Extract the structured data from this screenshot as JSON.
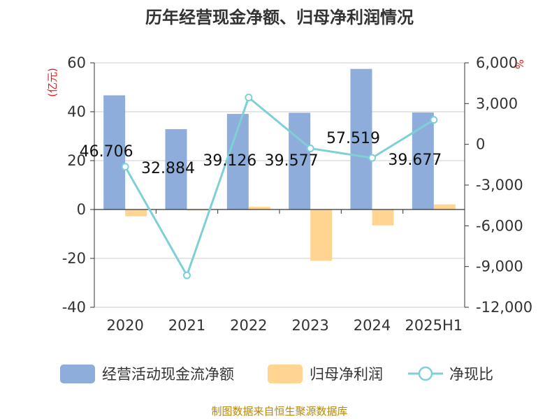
{
  "chart_data": {
    "type": "bar",
    "title": "历年经营现金净额、归母净利润情况",
    "categories": [
      "2020",
      "2021",
      "2022",
      "2023",
      "2024",
      "2025H1"
    ],
    "left_axis": {
      "unit": "(亿元)",
      "ylim": [
        -40,
        60
      ],
      "ticks": [
        "60",
        "40",
        "20",
        "0",
        "-20",
        "-40"
      ],
      "tick_values": [
        60,
        40,
        20,
        0,
        -20,
        -40
      ]
    },
    "right_axis": {
      "unit": "%",
      "ylim": [
        -12000,
        6000
      ],
      "ticks": [
        "6,000",
        "3,000",
        "0",
        "-3,000",
        "-6,000",
        "-9,000",
        "-12,000"
      ],
      "tick_values": [
        6000,
        3000,
        0,
        -3000,
        -6000,
        -9000,
        -12000
      ]
    },
    "series": [
      {
        "name": "经营活动现金流净额",
        "type": "bar",
        "axis": "left",
        "color": "#8eaddb",
        "values": [
          46.706,
          32.884,
          39.126,
          39.577,
          57.519,
          39.677
        ],
        "labels": [
          "46.706",
          "32.884",
          "39.126",
          "39.577",
          "57.519",
          "39.677"
        ]
      },
      {
        "name": "归母净利润",
        "type": "bar",
        "axis": "left",
        "color": "#ffd591",
        "values": [
          -2.8,
          -0.4,
          1.1,
          -21.0,
          -6.5,
          2.1
        ]
      },
      {
        "name": "净现比",
        "type": "line",
        "axis": "right",
        "color": "#7fd0d6",
        "values": [
          -1650,
          -9650,
          3450,
          -300,
          -1000,
          1800
        ]
      }
    ],
    "grid": true
  },
  "footer": {
    "source": "制图数据来自恒生聚源数据库"
  }
}
